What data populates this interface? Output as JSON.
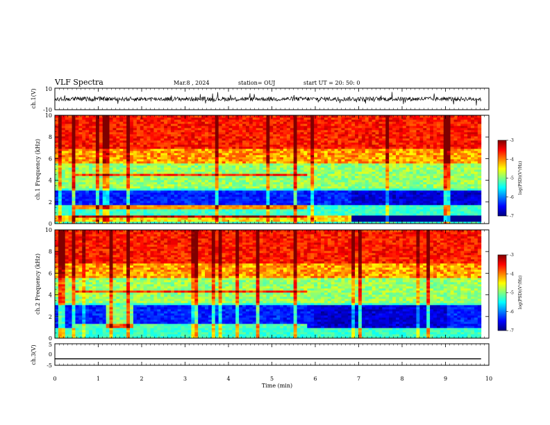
{
  "header": {
    "title": "VLF Spectra",
    "date": "Mar.8  , 2024",
    "station": "station= OUJ",
    "start": "start  UT  =   20: 50: 0"
  },
  "chart_data": [
    {
      "type": "line",
      "name": "ch1-waveform",
      "ylabel": "ch.1(V)",
      "ylim": [
        -10,
        10
      ],
      "yticks": [
        "10",
        "-10"
      ],
      "x": [
        0,
        9.82
      ],
      "y_mean": 0,
      "y_spread_approx": 2
    },
    {
      "type": "heatmap",
      "name": "ch1-spectrogram",
      "ylabel": "ch.1 Frequency (kHz)",
      "ylim": [
        0,
        10
      ],
      "yticks": [
        "0",
        "2",
        "4",
        "6",
        "8",
        "10"
      ],
      "colorbar": {
        "label": "log(PSD)(V²/Hz)",
        "range": [
          -7,
          -3
        ],
        "ticks": [
          "-3",
          "-4",
          "-5",
          "-6",
          "-7"
        ]
      },
      "dark_band_khz": [
        1.8,
        3.0
      ],
      "low_band_khz": [
        0.2,
        0.8
      ],
      "tone_lines_khz": [
        4.5,
        1.5,
        0.7
      ]
    },
    {
      "type": "heatmap",
      "name": "ch2-spectrogram",
      "ylabel": "ch.2 Frequency (kHz)",
      "ylim": [
        0,
        10
      ],
      "yticks": [
        "0",
        "2",
        "4",
        "6",
        "8",
        "10"
      ],
      "colorbar": {
        "label": "log(PSD)(V²/Hz)",
        "range": [
          -7,
          -3
        ],
        "ticks": [
          "-3",
          "-4",
          "-5",
          "-6",
          "-7"
        ]
      },
      "dark_band_khz": [
        1.0,
        3.0
      ],
      "tone_lines_khz": [
        4.3,
        1.2
      ]
    },
    {
      "type": "line",
      "name": "ch3-waveform",
      "ylabel": "ch.3(V)",
      "ylim": [
        -5,
        5
      ],
      "yticks": [
        "5",
        "0",
        "-5"
      ],
      "x": [
        0,
        9.82
      ],
      "y": [
        -2,
        -2
      ]
    }
  ],
  "xaxis": {
    "xlabel": "Time  (min)",
    "xlim": [
      0,
      10
    ],
    "ticks": [
      "0",
      "1",
      "2",
      "3",
      "4",
      "5",
      "6",
      "7",
      "8",
      "9",
      "10"
    ]
  },
  "colors": {
    "colormap": [
      "#7f0000",
      "#ff0000",
      "#ff8000",
      "#ffff00",
      "#80ff80",
      "#00ffff",
      "#0080ff",
      "#0000ff",
      "#00007f"
    ],
    "trace": "#000000"
  }
}
